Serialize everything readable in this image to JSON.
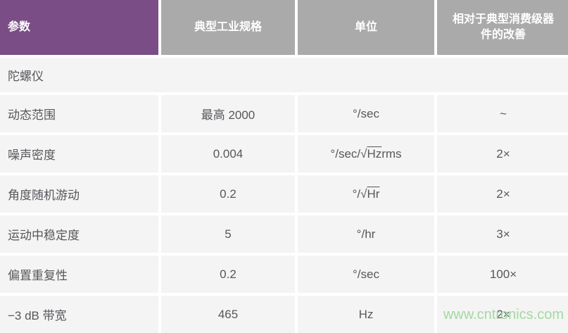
{
  "colors": {
    "header_purple": "#7B4D86",
    "header_gray": "#ABAAAB",
    "row_background": "#F4F4F4",
    "body_text": "#56575B",
    "header_text": "#FFFFFF",
    "watermark_green": "#A5D8A2"
  },
  "watermark": "www.cntronics.com",
  "chart_data": {
    "type": "table",
    "columns": [
      "参数",
      "典型工业规格",
      "单位",
      "相对于典型消费级器件的改善"
    ],
    "section": "陀螺仪",
    "rows": [
      [
        "动态范围",
        "最高 2000",
        "°/sec",
        "~"
      ],
      [
        "噪声密度",
        "0.004",
        "°/sec/√Hz rms",
        "2×"
      ],
      [
        "角度随机游动",
        "0.2",
        "°/√Hr",
        "2×"
      ],
      [
        "运动中稳定度",
        "5",
        "°/hr",
        "3×"
      ],
      [
        "偏置重复性",
        "0.2",
        "°/sec",
        "100×"
      ],
      [
        "−3 dB 带宽",
        "465",
        "Hz",
        "2×"
      ]
    ]
  },
  "table": {
    "headers": [
      {
        "label": "参数"
      },
      {
        "label": "典型工业规格"
      },
      {
        "label": "单位"
      },
      {
        "label": "相对于典型消费级器\n件的改善"
      }
    ],
    "section_label": "陀螺仪",
    "rows": [
      {
        "param": "动态范围",
        "spec": "最高 2000",
        "unit": [
          {
            "text": "°/sec"
          }
        ],
        "improvement": "~"
      },
      {
        "param": "噪声密度",
        "spec": "0.004",
        "unit": [
          {
            "text": "°/sec/√"
          },
          {
            "text": "Hz",
            "overline": true
          },
          {
            "text": " rms"
          }
        ],
        "improvement": "2×"
      },
      {
        "param": "角度随机游动",
        "spec": "0.2",
        "unit": [
          {
            "text": "°/√"
          },
          {
            "text": "Hr",
            "overline": true
          }
        ],
        "improvement": "2×"
      },
      {
        "param": "运动中稳定度",
        "spec": "5",
        "unit": [
          {
            "text": "°/hr"
          }
        ],
        "improvement": "3×"
      },
      {
        "param": "偏置重复性",
        "spec": "0.2",
        "unit": [
          {
            "text": "°/sec"
          }
        ],
        "improvement": "100×"
      },
      {
        "param": "−3 dB 带宽",
        "spec": "465",
        "unit": [
          {
            "text": "Hz"
          }
        ],
        "improvement": "2×"
      }
    ]
  }
}
